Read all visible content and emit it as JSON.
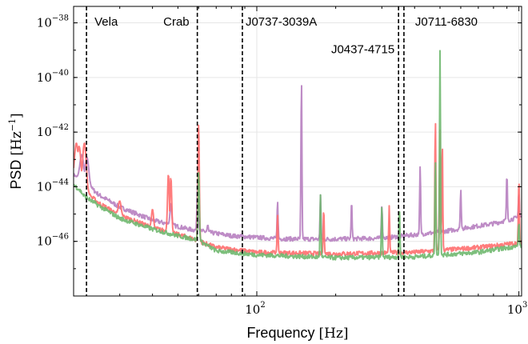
{
  "chart_data": {
    "type": "line",
    "title": "",
    "xlabel": "Frequency",
    "xunit": "[Hz]",
    "ylabel": "PSD",
    "yunit": "[Hz^-1]",
    "xscale": "log",
    "yscale": "log",
    "xlim": [
      20,
      1024
    ],
    "ylim": [
      1e-48,
      4e-38
    ],
    "grid": true,
    "legend": "none",
    "xticks": [
      {
        "value": 100,
        "base": "10",
        "exp": "2"
      },
      {
        "value": 1000,
        "base": "10",
        "exp": "3"
      }
    ],
    "yticks": [
      {
        "value": 1e-38,
        "base": "10",
        "exp": "−38"
      },
      {
        "value": 1e-40,
        "base": "10",
        "exp": "−40"
      },
      {
        "value": 1e-42,
        "base": "10",
        "exp": "−42"
      },
      {
        "value": 1e-44,
        "base": "10",
        "exp": "−44"
      },
      {
        "value": 1e-46,
        "base": "10",
        "exp": "−46"
      }
    ],
    "pulsar_lines": [
      {
        "label": "Vela",
        "freq": 22.4,
        "label_y": 1.1e-38,
        "anchor": "start",
        "dx": 10
      },
      {
        "label": "Crab",
        "freq": 59.3,
        "label_y": 1.1e-38,
        "anchor": "end",
        "dx": -10
      },
      {
        "label": "J0737-3039A",
        "freq": 88.1,
        "label_y": 1.1e-38,
        "anchor": "start",
        "dx": 4
      },
      {
        "label": "J0437-4715",
        "freq": 347.4,
        "label_y": 1.1e-39,
        "anchor": "end",
        "dx": -5
      },
      {
        "label": "J0711-6830",
        "freq": 364.2,
        "label_y": 1.1e-38,
        "anchor": "start",
        "dx": 14
      }
    ],
    "series": [
      {
        "color": "#b77fc0",
        "baseline": [
          [
            20,
            2.6e-44
          ],
          [
            22,
            1.5e-44
          ],
          [
            25,
            5e-45
          ],
          [
            30,
            1.8e-45
          ],
          [
            40,
            6e-46
          ],
          [
            55,
            2.8e-46
          ],
          [
            80,
            1.6e-46
          ],
          [
            120,
            1.25e-46
          ],
          [
            180,
            1.2e-46
          ],
          [
            300,
            1.3e-46
          ],
          [
            500,
            2.2e-46
          ],
          [
            800,
            4.5e-46
          ],
          [
            1024,
            8e-46
          ]
        ],
        "peaks": [
          [
            21.5,
            1.5e-43
          ],
          [
            22.5,
            1.2e-43
          ],
          [
            47,
            2.5e-45
          ],
          [
            59.5,
            1.5e-44
          ],
          [
            65,
            4e-46
          ],
          [
            120,
            3e-45
          ],
          [
            148,
            1e-40
          ],
          [
            175,
            5e-45
          ],
          [
            230,
            3e-45
          ],
          [
            300,
            2e-45
          ],
          [
            420,
            6e-44
          ],
          [
            500,
            6e-44
          ],
          [
            600,
            8e-45
          ],
          [
            900,
            3e-44
          ],
          [
            1000,
            6e-45
          ]
        ]
      },
      {
        "color": "#ff6e6e",
        "baseline": [
          [
            20,
            1.3e-44
          ],
          [
            22,
            7e-45
          ],
          [
            25,
            2.5e-45
          ],
          [
            30,
            9e-46
          ],
          [
            40,
            3.2e-46
          ],
          [
            55,
            1.4e-46
          ],
          [
            70,
            6e-47
          ],
          [
            100,
            4e-47
          ],
          [
            200,
            3.5e-47
          ],
          [
            400,
            4e-47
          ],
          [
            700,
            6e-47
          ],
          [
            1024,
            9e-47
          ]
        ],
        "peaks": [
          [
            20.5,
            4e-43
          ],
          [
            21,
            3e-43
          ],
          [
            22,
            4e-43
          ],
          [
            30,
            3e-45
          ],
          [
            40,
            1.5e-45
          ],
          [
            46,
            3e-44
          ],
          [
            47,
            2.2e-44
          ],
          [
            60,
            2e-42
          ],
          [
            120,
            1e-45
          ],
          [
            180,
            1.6e-45
          ],
          [
            320,
            2e-45
          ],
          [
            480,
            3e-42
          ],
          [
            500,
            1.2e-42
          ],
          [
            510,
            5e-43
          ],
          [
            1000,
            2e-44
          ]
        ]
      },
      {
        "color": "#6fb86f",
        "baseline": [
          [
            20,
            1.2e-44
          ],
          [
            21,
            8e-45
          ],
          [
            22,
            4.5e-45
          ],
          [
            25,
            2e-45
          ],
          [
            30,
            7e-46
          ],
          [
            40,
            2.8e-46
          ],
          [
            50,
            1.6e-46
          ],
          [
            60,
            1.1e-46
          ],
          [
            70,
            4.5e-47
          ],
          [
            100,
            3.2e-47
          ],
          [
            200,
            2.5e-47
          ],
          [
            400,
            2.7e-47
          ],
          [
            700,
            4e-47
          ],
          [
            1024,
            7e-47
          ]
        ],
        "peaks": [
          [
            60,
            3.5e-44
          ],
          [
            175,
            5e-45
          ],
          [
            300,
            2e-45
          ],
          [
            350,
            2e-45
          ],
          [
            480,
            1e-43
          ],
          [
            500,
            1e-39
          ],
          [
            1000,
            5e-46
          ]
        ]
      }
    ]
  }
}
